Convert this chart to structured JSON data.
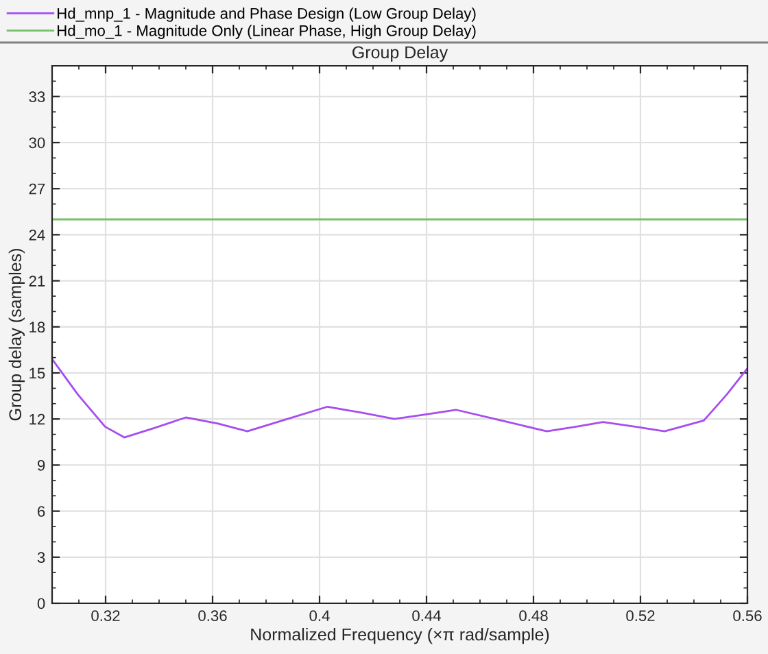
{
  "chart_data": {
    "type": "line",
    "title": "Group Delay",
    "xlabel": "Normalized Frequency (×π rad/sample)",
    "ylabel": "Group delay (samples)",
    "series": [
      {
        "name": "Hd_mnp_1 - Magnitude and Phase Design (Low Group Delay)",
        "color": "#a64df0",
        "x": [
          0.3,
          0.3096,
          0.3198,
          0.327,
          0.338,
          0.35,
          0.362,
          0.373,
          0.388,
          0.403,
          0.416,
          0.428,
          0.44,
          0.451,
          0.468,
          0.485,
          0.496,
          0.506,
          0.518,
          0.529,
          0.5437,
          0.5523,
          0.56
        ],
        "values": [
          15.9,
          13.6,
          11.5,
          10.8,
          11.4,
          12.1,
          11.7,
          11.2,
          12.0,
          12.8,
          12.4,
          12.0,
          12.3,
          12.6,
          11.9,
          11.2,
          11.5,
          11.8,
          11.5,
          11.2,
          11.9,
          13.6,
          15.3
        ]
      },
      {
        "name": "Hd_mo_1 - Magnitude Only (Linear Phase, High Group Delay)",
        "color": "#77bf6a",
        "x": [
          0.3,
          0.56
        ],
        "values": [
          25,
          25
        ]
      }
    ],
    "xlim": [
      0.3,
      0.56
    ],
    "xticks": [
      0.32,
      0.36,
      0.4,
      0.44,
      0.48,
      0.52,
      0.56
    ],
    "ylim": [
      0,
      35
    ],
    "yticks": [
      0,
      3,
      6,
      9,
      12,
      15,
      18,
      21,
      24,
      27,
      30,
      33
    ],
    "grid": true,
    "legend": "top left",
    "marker": "none",
    "line_style": "solid"
  }
}
